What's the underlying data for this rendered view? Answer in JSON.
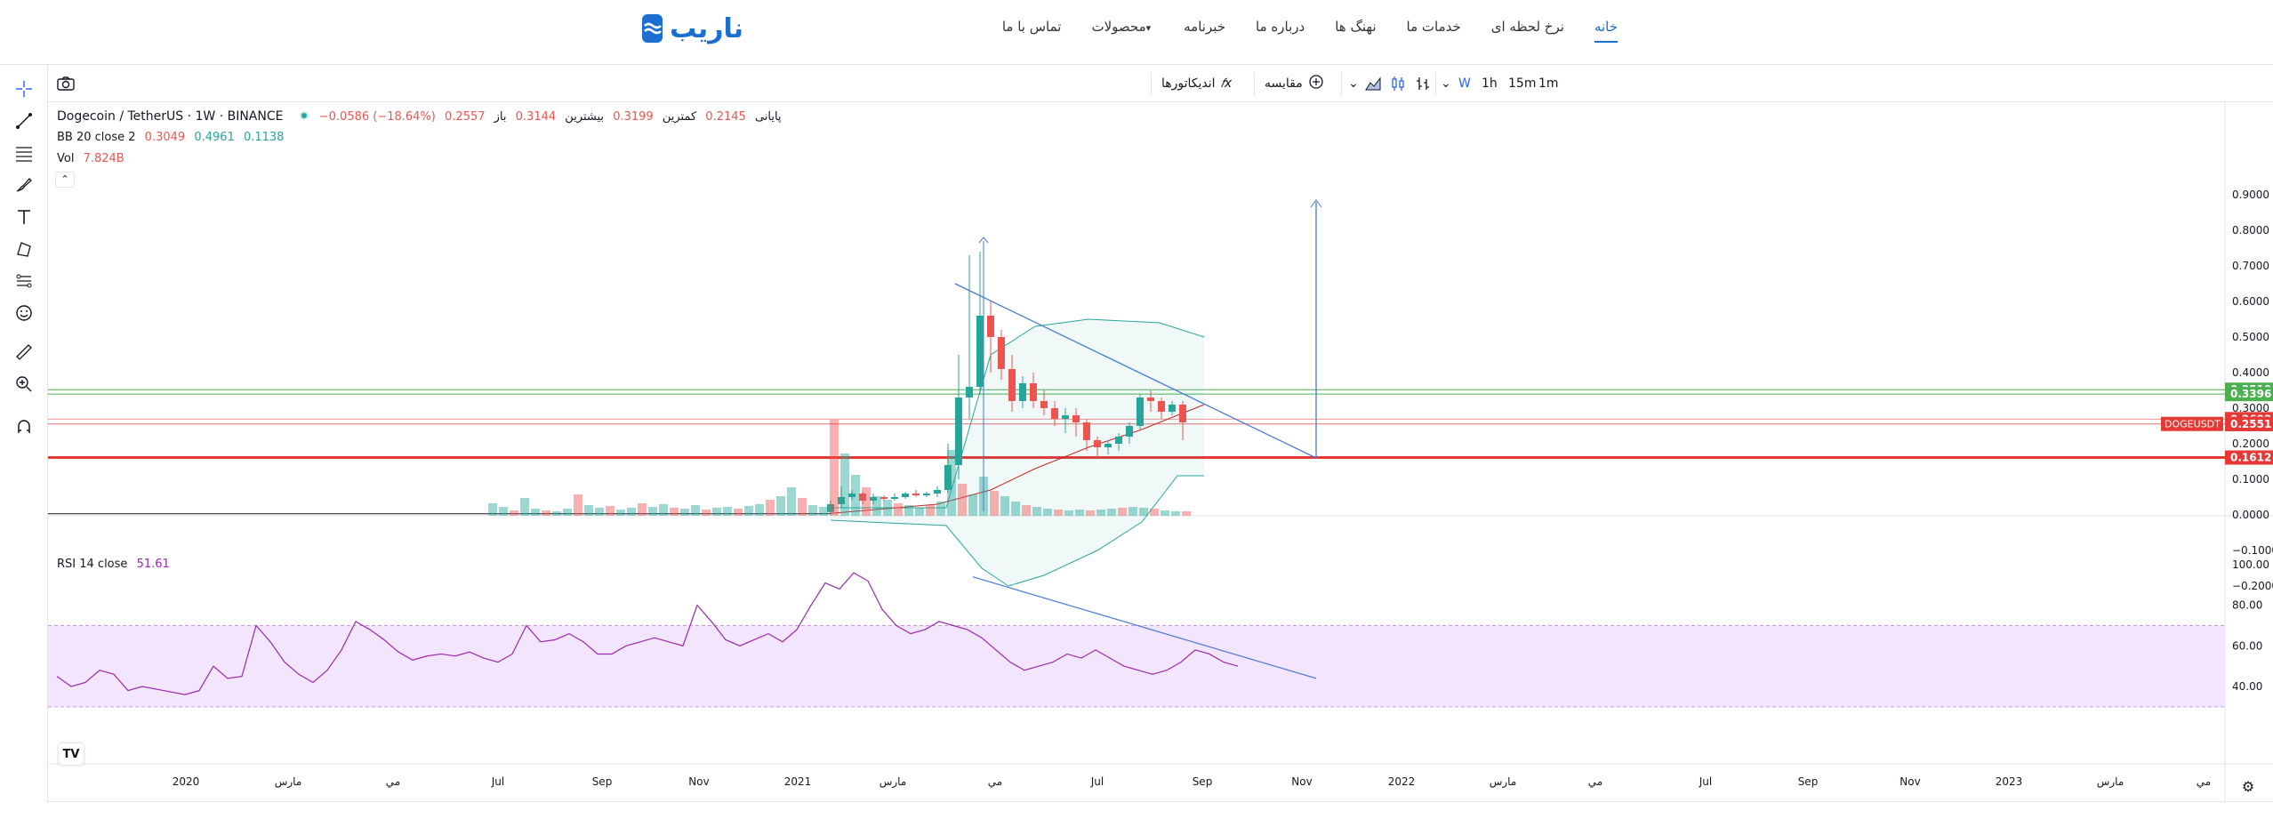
{
  "site": {
    "logo_text": "ناریب",
    "nav": [
      {
        "label": "خانه",
        "active": true
      },
      {
        "label": "نرخ لحظه ای"
      },
      {
        "label": "خدمات ما"
      },
      {
        "label": "نهنگ ها"
      },
      {
        "label": "درباره ما"
      },
      {
        "label": "خبرنامه"
      },
      {
        "label": "محصولات",
        "dropdown": true
      },
      {
        "label": "تماس با ما"
      }
    ]
  },
  "toolbar": {
    "intervals": [
      "1m",
      "15m",
      "1h",
      "W"
    ],
    "active_interval": "W",
    "compare_label": "مقایسه",
    "indicators_label": "اندیکاتورها"
  },
  "legend": {
    "symbol": "Dogecoin / TetherUS · 1W · BINANCE",
    "open_label": "باز",
    "open": "0.3144",
    "high_label": "بیشترین",
    "high": "0.3199",
    "low_label": "کمترین",
    "low": "0.2145",
    "close_label": "پایانی",
    "close": "0.2557",
    "change": "−0.0586 (−18.64%)",
    "bb_label": "BB 20 close 2",
    "bb_basis": "0.3049",
    "bb_upper": "0.4961",
    "bb_lower": "0.1138",
    "vol_label": "Vol",
    "vol": "7.824B",
    "rsi_label": "RSI 14 close",
    "rsi": "51.61"
  },
  "price_axis": [
    "0.9000",
    "0.8000",
    "0.7000",
    "0.6000",
    "0.5000",
    "0.4000",
    "0.3000",
    "0.2000",
    "0.1000",
    "0.0000",
    "−0.1000",
    "−0.2000"
  ],
  "price_tags": [
    {
      "text": "0.3519",
      "color": "#4caf50",
      "price": 0.3519
    },
    {
      "text": "0.3396",
      "color": "#4caf50",
      "price": 0.3396
    },
    {
      "text": "0.2692",
      "color": "#e53935",
      "price": 0.2692
    },
    {
      "text": "0.2557",
      "color": "#e53935",
      "price": 0.2557
    },
    {
      "text": "0.2551",
      "color": "#e53935",
      "price": 0.2551
    },
    {
      "text": "0.1612",
      "color": "#e53935",
      "price": 0.1612
    }
  ],
  "symbol_tag": "DOGEUSDT",
  "rsi_axis": [
    "100.00",
    "80.00",
    "60.00",
    "40.00"
  ],
  "time_axis": [
    "2020",
    "مارس",
    "مي",
    "Jul",
    "Sep",
    "Nov",
    "2021",
    "مارس",
    "مي",
    "Jul",
    "Sep",
    "Nov",
    "2022",
    "مارس",
    "مي",
    "Jul",
    "Sep",
    "Nov",
    "2023",
    "مارس",
    "مي"
  ],
  "colors": {
    "up": "#26a69a",
    "down": "#ef5350",
    "accent": "#2962ff",
    "rsi": "#9c27b0",
    "bb": "#26a69a",
    "trend": "#4a78d8"
  }
}
